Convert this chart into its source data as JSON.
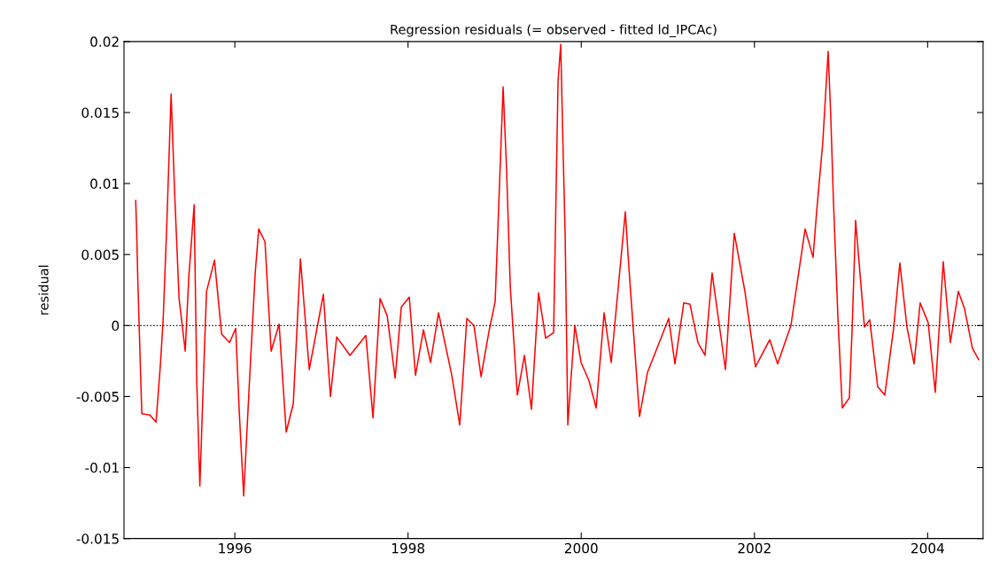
{
  "chart_data": {
    "type": "line",
    "title": "Regression residuals (= observed - fitted ld_IPCAc)",
    "ylabel": "residual",
    "series": [
      {
        "color": "#ff0000",
        "x": [
          1994.855,
          1994.865,
          1994.88,
          1994.916,
          1994.926,
          1995.018,
          1995.09,
          1995.141,
          1995.172,
          1995.213,
          1995.264,
          1995.305,
          1995.356,
          1995.427,
          1995.468,
          1995.53,
          1995.56,
          1995.596,
          1995.642,
          1995.673,
          1995.765,
          1995.847,
          1995.939,
          1996.01,
          1996.051,
          1996.102,
          1996.164,
          1996.235,
          1996.276,
          1996.348,
          1996.419,
          1996.511,
          1996.593,
          1996.675,
          1996.757,
          1996.859,
          1997.022,
          1997.104,
          1997.176,
          1997.329,
          1997.513,
          1997.595,
          1997.677,
          1997.759,
          1997.851,
          1997.922,
          1998.014,
          1998.086,
          1998.178,
          1998.26,
          1998.352,
          1998.505,
          1998.597,
          1998.679,
          1998.761,
          1998.843,
          1998.935,
          1999.006,
          1999.098,
          1999.139,
          1999.18,
          1999.262,
          1999.344,
          1999.425,
          1999.507,
          1999.589,
          1999.681,
          1999.732,
          1999.763,
          1999.793,
          1999.814,
          1999.845,
          1999.875,
          1999.926,
          1999.998,
          2000.09,
          2000.172,
          2000.264,
          2000.346,
          2000.509,
          2000.55,
          2000.673,
          2000.765,
          2001.01,
          2001.082,
          2001.184,
          2001.256,
          2001.348,
          2001.429,
          2001.511,
          2001.665,
          2001.767,
          2001.89,
          2002.012,
          2002.176,
          2002.268,
          2002.421,
          2002.585,
          2002.677,
          2002.718,
          2002.789,
          2002.851,
          2002.881,
          2002.912,
          2002.963,
          2003.014,
          2003.096,
          2003.127,
          2003.168,
          2003.27,
          2003.331,
          2003.423,
          2003.505,
          2003.607,
          2003.679,
          2003.761,
          2003.843,
          2003.914,
          2004.006,
          2004.088,
          2004.18,
          2004.262,
          2004.354,
          2004.425,
          2004.517,
          2004.589
        ],
        "values": [
          0.0088,
          0.0069,
          0.0031,
          -0.0043,
          -0.0062,
          -0.0063,
          -0.0068,
          -0.0027,
          0.0004,
          0.0069,
          0.0163,
          0.0093,
          0.0019,
          -0.0018,
          0.0034,
          0.0085,
          -0.0039,
          -0.0113,
          -0.0029,
          0.0024,
          0.0046,
          -0.0006,
          -0.0012,
          -0.0002,
          -0.0061,
          -0.012,
          -0.0045,
          0.0037,
          0.0068,
          0.0059,
          -0.0018,
          0.0001,
          -0.0075,
          -0.0055,
          0.0047,
          -0.0031,
          0.0022,
          -0.005,
          -0.0008,
          -0.0021,
          -0.0007,
          -0.0065,
          0.0019,
          0.0007,
          -0.0037,
          0.0013,
          0.002,
          -0.0035,
          -0.0003,
          -0.0026,
          0.0009,
          -0.0035,
          -0.007,
          0.0005,
          0.0,
          -0.0036,
          -0.0004,
          0.0017,
          0.0168,
          0.0108,
          0.0028,
          -0.0049,
          -0.0021,
          -0.0059,
          0.0023,
          -0.0009,
          -0.0005,
          0.0172,
          0.0198,
          0.0117,
          0.0064,
          -0.007,
          -0.0043,
          0.0,
          -0.0026,
          -0.0039,
          -0.0058,
          0.0009,
          -0.0026,
          0.008,
          0.0041,
          -0.0064,
          -0.0033,
          0.0005,
          -0.0027,
          0.0016,
          0.0015,
          -0.0012,
          -0.0021,
          0.0037,
          -0.0031,
          0.0065,
          0.0024,
          -0.0029,
          -0.001,
          -0.0027,
          0.0,
          0.0068,
          0.0048,
          0.008,
          0.0129,
          0.0193,
          0.0148,
          0.0088,
          0.0007,
          -0.0058,
          -0.0051,
          -0.0004,
          0.0074,
          -0.0001,
          0.0004,
          -0.0043,
          -0.0049,
          -0.0002,
          0.0044,
          -0.0001,
          -0.0027,
          0.0016,
          0.0002,
          -0.0047,
          0.0045,
          -0.0012,
          0.0024,
          0.0012,
          -0.0016,
          -0.0024
        ]
      }
    ],
    "xlim": [
      1994.72,
      2004.64
    ],
    "xticks": [
      1996,
      1998,
      2000,
      2002,
      2004
    ],
    "ylim": [
      -0.015,
      0.02
    ],
    "yticks": [
      -0.015,
      -0.01,
      -0.005,
      0,
      0.005,
      0.01,
      0.015,
      0.02
    ],
    "ref_lines": [
      {
        "axis": "y",
        "value": 0,
        "color": "#000000",
        "line_style": "dotted"
      }
    ],
    "grid": false,
    "legend": false,
    "marker": "none",
    "line_style": "solid"
  }
}
